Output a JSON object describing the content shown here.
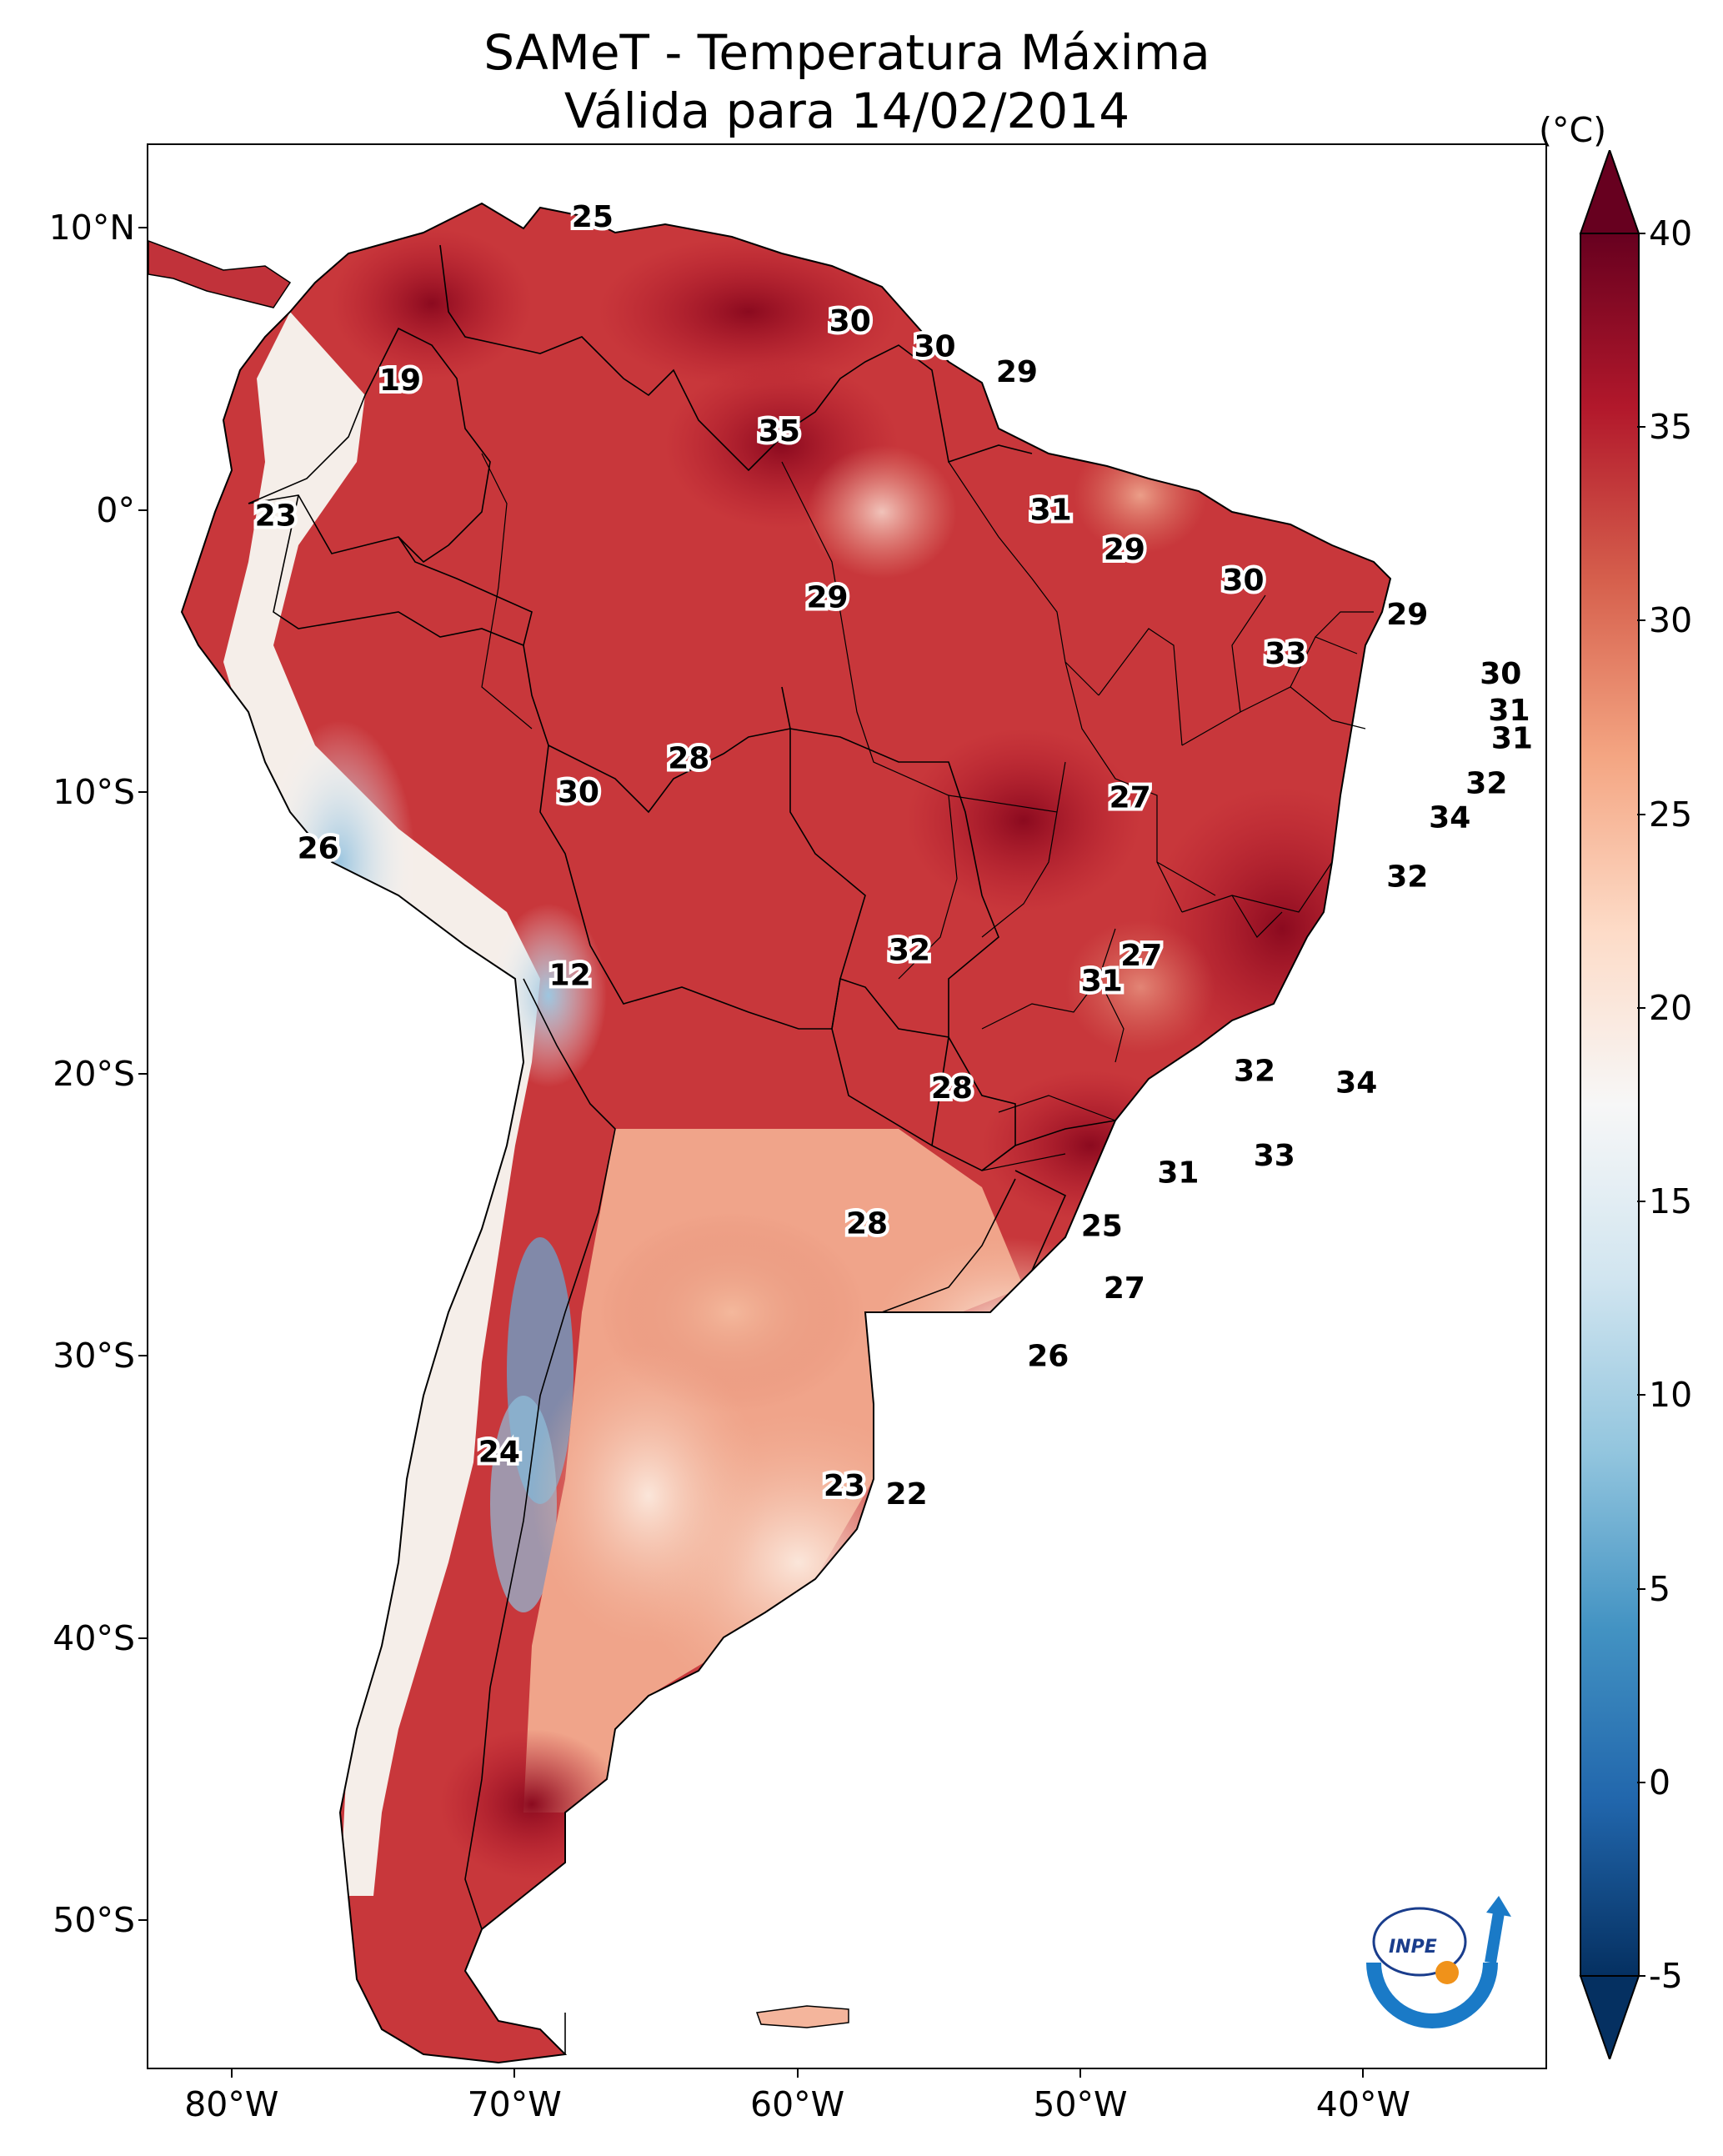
{
  "title": {
    "line1": "SAMeT - Temperatura Máxima",
    "line2": "Válida para 14/02/2014"
  },
  "axes": {
    "lat_labels": [
      "10°N",
      "0°",
      "10°S",
      "20°S",
      "30°S",
      "40°S",
      "50°S"
    ],
    "lon_labels": [
      "80°W",
      "70°W",
      "60°W",
      "50°W",
      "40°W"
    ]
  },
  "colorbar": {
    "unit": "(°C)",
    "ticks": [
      "40",
      "35",
      "30",
      "25",
      "20",
      "15",
      "10",
      "5",
      "0",
      "-5"
    ],
    "range": [
      -5,
      40
    ],
    "extend": "both",
    "colors": [
      "#053061",
      "#2166ac",
      "#4393c3",
      "#92c5de",
      "#d1e5f0",
      "#f7f7f7",
      "#fddbc7",
      "#f4a582",
      "#d6604d",
      "#b2182b",
      "#67001f"
    ]
  },
  "stations": [
    {
      "value": "25",
      "lon": -67.3,
      "lat": 10.4
    },
    {
      "value": "30",
      "lon": -58.2,
      "lat": 6.7
    },
    {
      "value": "30",
      "lon": -55.2,
      "lat": 5.8
    },
    {
      "value": "29",
      "lon": -52.3,
      "lat": 4.9
    },
    {
      "value": "19",
      "lon": -74.1,
      "lat": 4.6
    },
    {
      "value": "35",
      "lon": -60.7,
      "lat": 2.8
    },
    {
      "value": "23",
      "lon": -78.5,
      "lat": -0.2
    },
    {
      "value": "31",
      "lon": -51.1,
      "lat": 0.0
    },
    {
      "value": "29",
      "lon": -48.5,
      "lat": -1.4
    },
    {
      "value": "30",
      "lon": -44.3,
      "lat": -2.5
    },
    {
      "value": "29",
      "lon": -59.0,
      "lat": -3.1
    },
    {
      "value": "29",
      "lon": -38.5,
      "lat": -3.7
    },
    {
      "value": "33",
      "lon": -42.8,
      "lat": -5.1
    },
    {
      "value": "30",
      "lon": -35.2,
      "lat": -5.8
    },
    {
      "value": "31",
      "lon": -34.9,
      "lat": -7.1
    },
    {
      "value": "31",
      "lon": -34.8,
      "lat": -8.1
    },
    {
      "value": "28",
      "lon": -63.9,
      "lat": -8.8
    },
    {
      "value": "32",
      "lon": -35.7,
      "lat": -9.7
    },
    {
      "value": "27",
      "lon": -48.3,
      "lat": -10.2
    },
    {
      "value": "30",
      "lon": -67.8,
      "lat": -10.0
    },
    {
      "value": "34",
      "lon": -37.0,
      "lat": -10.9
    },
    {
      "value": "26",
      "lon": -77.0,
      "lat": -12.0
    },
    {
      "value": "32",
      "lon": -38.5,
      "lat": -13.0
    },
    {
      "value": "32",
      "lon": -56.1,
      "lat": -15.6
    },
    {
      "value": "27",
      "lon": -47.9,
      "lat": -15.8
    },
    {
      "value": "31",
      "lon": -49.3,
      "lat": -16.7
    },
    {
      "value": "12",
      "lon": -68.1,
      "lat": -16.5
    },
    {
      "value": "32",
      "lon": -43.9,
      "lat": -19.9
    },
    {
      "value": "34",
      "lon": -40.3,
      "lat": -20.3
    },
    {
      "value": "28",
      "lon": -54.6,
      "lat": -20.5
    },
    {
      "value": "33",
      "lon": -43.2,
      "lat": -22.9
    },
    {
      "value": "31",
      "lon": -46.6,
      "lat": -23.5
    },
    {
      "value": "25",
      "lon": -49.3,
      "lat": -25.4
    },
    {
      "value": "28",
      "lon": -57.6,
      "lat": -25.3
    },
    {
      "value": "27",
      "lon": -48.5,
      "lat": -27.6
    },
    {
      "value": "26",
      "lon": -51.2,
      "lat": -30.0
    },
    {
      "value": "24",
      "lon": -70.6,
      "lat": -33.4
    },
    {
      "value": "23",
      "lon": -58.4,
      "lat": -34.6
    },
    {
      "value": "22",
      "lon": -56.2,
      "lat": -34.9
    }
  ],
  "logo": {
    "text": "INPE"
  }
}
